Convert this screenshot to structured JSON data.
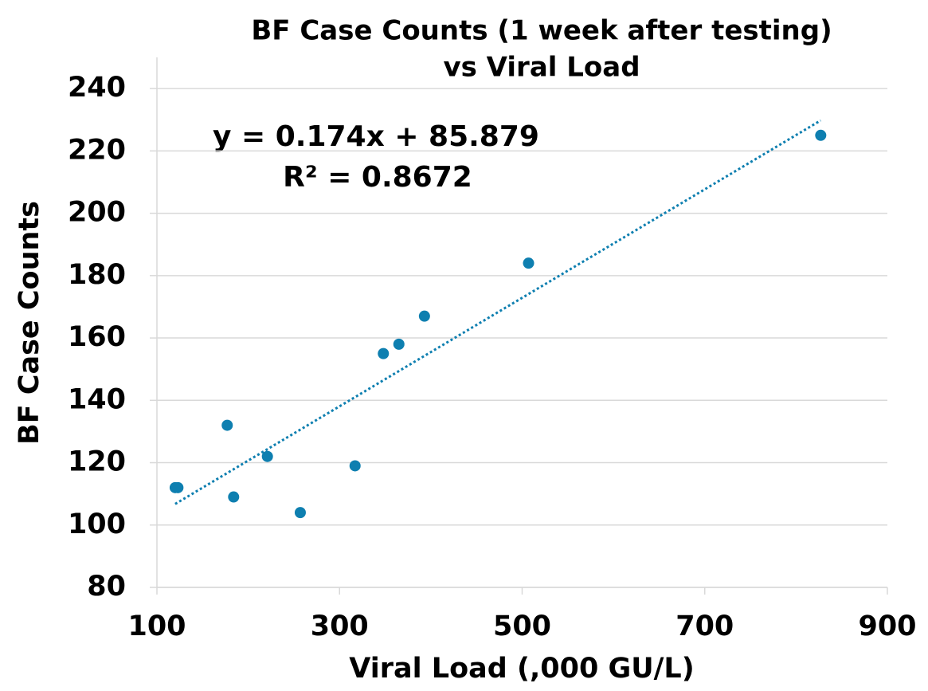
{
  "chart_data": {
    "type": "scatter",
    "title": [
      "BF Case Counts (1 week after testing)",
      "vs Viral Load"
    ],
    "x_label": "Viral Load (,000 GU/L)",
    "y_label": "BF Case Counts",
    "series": [
      {
        "name": "BF Case Counts",
        "color": "#0e7fb0",
        "x": [
          120,
          123,
          177,
          184,
          221,
          257,
          317,
          348,
          365,
          393,
          507,
          827
        ],
        "values": [
          112,
          112,
          132,
          109,
          122,
          104,
          119,
          155,
          158,
          167,
          184,
          225
        ]
      }
    ],
    "trendline": {
      "slope": 0.174,
      "intercept": 85.879,
      "color": "#0e7fb0",
      "equation": "y = 0.174x + 85.879",
      "r2": "R² = 0.8672"
    },
    "xlim": [
      100,
      900
    ],
    "xticks": [
      100,
      300,
      500,
      700,
      900
    ],
    "ylim": [
      80,
      250
    ],
    "yticks": [
      80,
      100,
      120,
      140,
      160,
      180,
      200,
      220,
      240
    ],
    "grid": true
  }
}
